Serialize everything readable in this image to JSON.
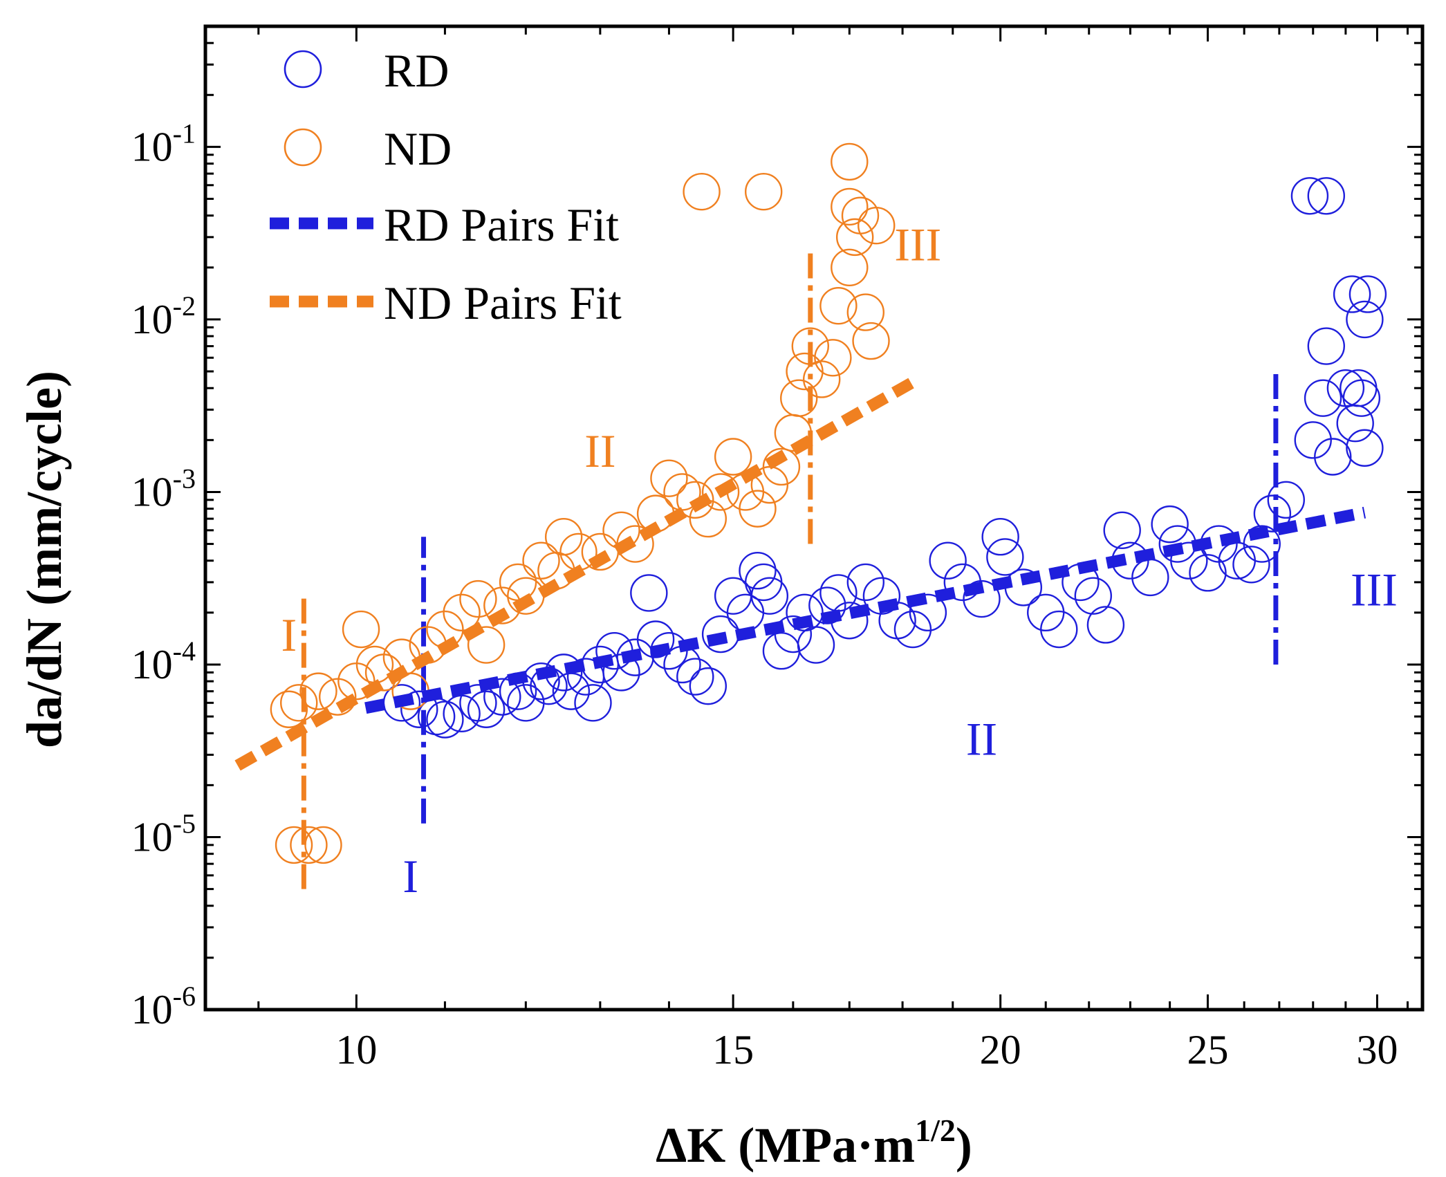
{
  "chart_data": {
    "type": "scatter",
    "x_scale": "log",
    "y_scale": "log",
    "xlim": [
      8.5,
      31.5
    ],
    "ylim": [
      1e-06,
      0.5
    ],
    "xlabel": "ΔK (MPa·m",
    "xlabel_sup": "1/2",
    "xlabel_close": ")",
    "ylabel": "da/dN (mm/cycle)",
    "x_ticks": [
      10,
      15,
      20,
      25,
      30
    ],
    "x_tick_labels": [
      "10",
      "15",
      "20",
      "25",
      "30"
    ],
    "y_ticks": [
      1e-06,
      1e-05,
      0.0001,
      0.001,
      0.01,
      0.1
    ],
    "y_tick_base": "10",
    "y_tick_exponents": [
      "-6",
      "-5",
      "-4",
      "-3",
      "-2",
      "-1"
    ],
    "legend": {
      "position": "top-left",
      "items": [
        {
          "label": "RD",
          "kind": "circle",
          "color": "#1f1fdc"
        },
        {
          "label": "ND",
          "kind": "circle",
          "color": "#f08020"
        },
        {
          "label": "RD Pairs Fit",
          "kind": "dash",
          "color": "#1f1fdc"
        },
        {
          "label": "ND Pairs Fit",
          "kind": "dash",
          "color": "#f08020"
        }
      ]
    },
    "colors": {
      "rd": "#1f1fdc",
      "nd": "#f08020"
    },
    "series": [
      {
        "name": "RD",
        "points": [
          [
            10.5,
            6e-05
          ],
          [
            10.7,
            5.5e-05
          ],
          [
            10.9,
            5e-05
          ],
          [
            11.0,
            4.8e-05
          ],
          [
            11.2,
            5.2e-05
          ],
          [
            11.4,
            6e-05
          ],
          [
            11.5,
            5.5e-05
          ],
          [
            11.7,
            6.5e-05
          ],
          [
            11.9,
            7e-05
          ],
          [
            12.0,
            6e-05
          ],
          [
            12.2,
            8e-05
          ],
          [
            12.3,
            7.5e-05
          ],
          [
            12.5,
            9e-05
          ],
          [
            12.6,
            7e-05
          ],
          [
            12.8,
            8.5e-05
          ],
          [
            12.9,
            6e-05
          ],
          [
            13.0,
            0.0001
          ],
          [
            13.2,
            0.00012
          ],
          [
            13.3,
            9e-05
          ],
          [
            13.5,
            0.00011
          ],
          [
            13.7,
            0.00026
          ],
          [
            13.8,
            0.00014
          ],
          [
            14.0,
            0.00012
          ],
          [
            14.2,
            0.0001
          ],
          [
            14.4,
            8.5e-05
          ],
          [
            14.6,
            7.5e-05
          ],
          [
            14.8,
            0.00015
          ],
          [
            15.0,
            0.00025
          ],
          [
            15.2,
            0.0002
          ],
          [
            15.4,
            0.00035
          ],
          [
            15.5,
            0.0003
          ],
          [
            15.6,
            0.00025
          ],
          [
            15.8,
            0.00012
          ],
          [
            16.0,
            0.00015
          ],
          [
            16.2,
            0.0002
          ],
          [
            16.4,
            0.00013
          ],
          [
            16.6,
            0.00022
          ],
          [
            16.8,
            0.00026
          ],
          [
            17.0,
            0.00018
          ],
          [
            17.3,
            0.0003
          ],
          [
            17.6,
            0.00025
          ],
          [
            17.9,
            0.00018
          ],
          [
            18.2,
            0.00016
          ],
          [
            18.5,
            0.0002
          ],
          [
            18.9,
            0.0004
          ],
          [
            19.2,
            0.0003
          ],
          [
            19.6,
            0.00024
          ],
          [
            20.0,
            0.00055
          ],
          [
            20.1,
            0.00042
          ],
          [
            20.5,
            0.00028
          ],
          [
            21.0,
            0.0002
          ],
          [
            21.3,
            0.00016
          ],
          [
            21.8,
            0.0003
          ],
          [
            22.1,
            0.00025
          ],
          [
            22.4,
            0.00017
          ],
          [
            22.8,
            0.0006
          ],
          [
            23.0,
            0.0004
          ],
          [
            23.5,
            0.00032
          ],
          [
            24.0,
            0.00065
          ],
          [
            24.2,
            0.0005
          ],
          [
            24.5,
            0.0004
          ],
          [
            25.0,
            0.00034
          ],
          [
            25.3,
            0.0005
          ],
          [
            25.8,
            0.0004
          ],
          [
            26.2,
            0.00038
          ],
          [
            26.5,
            0.0005
          ],
          [
            26.8,
            0.00075
          ],
          [
            27.2,
            0.0009
          ],
          [
            28.0,
            0.002
          ],
          [
            28.3,
            0.0035
          ],
          [
            28.6,
            0.0016
          ],
          [
            29.0,
            0.004
          ],
          [
            29.3,
            0.0025
          ],
          [
            29.6,
            0.0018
          ],
          [
            28.4,
            0.007
          ],
          [
            29.2,
            0.014
          ],
          [
            29.7,
            0.014
          ],
          [
            29.6,
            0.01
          ],
          [
            29.5,
            0.0035
          ],
          [
            29.4,
            0.004
          ],
          [
            27.9,
            0.052
          ],
          [
            28.4,
            0.052
          ]
        ]
      },
      {
        "name": "ND",
        "points": [
          [
            9.35,
            9e-06
          ],
          [
            9.5,
            9e-06
          ],
          [
            9.65,
            9e-06
          ],
          [
            9.3,
            5.5e-05
          ],
          [
            9.4,
            6e-05
          ],
          [
            9.6,
            7e-05
          ],
          [
            9.8,
            6.5e-05
          ],
          [
            10.0,
            8e-05
          ],
          [
            10.05,
            0.00016
          ],
          [
            10.2,
            0.0001
          ],
          [
            10.3,
            9e-05
          ],
          [
            10.5,
            0.00011
          ],
          [
            10.6,
            7e-05
          ],
          [
            10.8,
            0.00013
          ],
          [
            11.0,
            0.00016
          ],
          [
            11.2,
            0.0002
          ],
          [
            11.4,
            0.00024
          ],
          [
            11.5,
            0.00013
          ],
          [
            11.7,
            0.00022
          ],
          [
            11.9,
            0.0003
          ],
          [
            12.0,
            0.00025
          ],
          [
            12.2,
            0.0004
          ],
          [
            12.4,
            0.00035
          ],
          [
            12.5,
            0.00055
          ],
          [
            12.7,
            0.00045
          ],
          [
            13.0,
            0.00045
          ],
          [
            13.3,
            0.0006
          ],
          [
            13.5,
            0.0005
          ],
          [
            13.8,
            0.00075
          ],
          [
            14.0,
            0.0012
          ],
          [
            14.2,
            0.001
          ],
          [
            14.4,
            0.0009
          ],
          [
            14.6,
            0.0007
          ],
          [
            14.8,
            0.001
          ],
          [
            15.0,
            0.0016
          ],
          [
            15.2,
            0.001
          ],
          [
            15.4,
            0.0008
          ],
          [
            15.6,
            0.0011
          ],
          [
            15.8,
            0.0014
          ],
          [
            16.0,
            0.0022
          ],
          [
            16.1,
            0.0035
          ],
          [
            16.2,
            0.005
          ],
          [
            16.3,
            0.007
          ],
          [
            16.5,
            0.0045
          ],
          [
            16.7,
            0.006
          ],
          [
            16.8,
            0.012
          ],
          [
            17.0,
            0.02
          ],
          [
            17.1,
            0.03
          ],
          [
            17.2,
            0.04
          ],
          [
            17.0,
            0.045
          ],
          [
            17.3,
            0.011
          ],
          [
            17.4,
            0.0075
          ],
          [
            17.5,
            0.035
          ],
          [
            14.5,
            0.055
          ],
          [
            15.5,
            0.055
          ],
          [
            17.0,
            0.082
          ]
        ]
      }
    ],
    "fits": [
      {
        "name": "RD Pairs Fit",
        "color": "#1f1fdc",
        "x": [
          10.1,
          29.6
        ],
        "y": [
          5.6e-05,
          0.00076
        ]
      },
      {
        "name": "ND Pairs Fit",
        "color": "#f08020",
        "x": [
          8.8,
          18.3
        ],
        "y": [
          2.6e-05,
          0.0045
        ]
      }
    ],
    "stage_lines": [
      {
        "color": "#f08020",
        "x": 9.45,
        "y": [
          5e-06,
          0.00025
        ]
      },
      {
        "color": "#f08020",
        "x": 16.3,
        "y": [
          0.0005,
          0.025
        ]
      },
      {
        "color": "#1f1fdc",
        "x": 10.75,
        "y": [
          1.2e-05,
          0.00055
        ]
      },
      {
        "color": "#1f1fdc",
        "x": 26.9,
        "y": [
          0.0001,
          0.005
        ]
      }
    ],
    "annotations": [
      {
        "text": "I",
        "color": "#f08020",
        "x": 9.3,
        "y": 0.00012
      },
      {
        "text": "II",
        "color": "#f08020",
        "x": 13.0,
        "y": 0.0014
      },
      {
        "text": "III",
        "color": "#f08020",
        "x": 18.3,
        "y": 0.022
      },
      {
        "text": "I",
        "color": "#1f1fdc",
        "x": 10.6,
        "y": 4.8e-06
      },
      {
        "text": "II",
        "color": "#1f1fdc",
        "x": 19.6,
        "y": 3e-05
      },
      {
        "text": "III",
        "color": "#1f1fdc",
        "x": 29.9,
        "y": 0.00022
      }
    ]
  }
}
